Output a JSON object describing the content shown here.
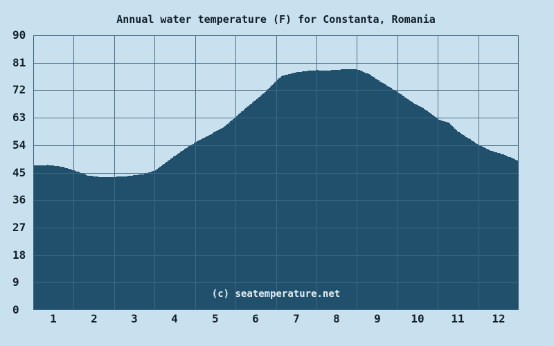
{
  "title": "Annual water temperature (F) for Constanta, Romania",
  "watermark": "(c) seatemperature.net",
  "colors": {
    "background": "#c9e1ee",
    "area_fill": "#20506b",
    "grid_on_background": "#4e7089",
    "grid_on_area": "#3a6885",
    "plot_border": "#3d617c",
    "text": "#111f29",
    "watermark_text": "#e4edf3"
  },
  "chart_data": {
    "type": "area",
    "title": "Annual water temperature (F) for Constanta, Romania",
    "xlabel": "",
    "ylabel": "",
    "xlim": [
      0,
      12
    ],
    "ylim": [
      0,
      90
    ],
    "grid": true,
    "legend": "none",
    "x_tick_labels": [
      "1",
      "2",
      "3",
      "4",
      "5",
      "6",
      "7",
      "8",
      "9",
      "10",
      "11",
      "12"
    ],
    "y_tick_labels": [
      "0",
      "9",
      "18",
      "27",
      "36",
      "45",
      "54",
      "63",
      "72",
      "81",
      "90"
    ],
    "y_tick_values": [
      0,
      9,
      18,
      27,
      36,
      45,
      54,
      63,
      72,
      81,
      90
    ],
    "categories": [
      "1",
      "2",
      "3",
      "4",
      "5",
      "6",
      "7",
      "8",
      "9",
      "10",
      "11",
      "12"
    ],
    "values": [
      47.3,
      43.7,
      44.1,
      50.3,
      59.1,
      69.0,
      78.6,
      78.9,
      75.4,
      66.6,
      58.3,
      51.3
    ],
    "series_name": "Water temperature (F)",
    "curve_points": [
      [
        0.0,
        47.3
      ],
      [
        0.35,
        47.5
      ],
      [
        0.7,
        46.9
      ],
      [
        1.0,
        45.7
      ],
      [
        1.35,
        44.0
      ],
      [
        1.7,
        43.5
      ],
      [
        2.0,
        43.6
      ],
      [
        2.35,
        43.9
      ],
      [
        2.7,
        44.5
      ],
      [
        3.0,
        45.7
      ],
      [
        3.35,
        49.2
      ],
      [
        3.7,
        52.5
      ],
      [
        4.0,
        55.0
      ],
      [
        4.35,
        57.4
      ],
      [
        4.7,
        60.0
      ],
      [
        5.0,
        63.4
      ],
      [
        5.25,
        66.3
      ],
      [
        5.5,
        69.0
      ],
      [
        5.75,
        71.8
      ],
      [
        6.0,
        75.2
      ],
      [
        6.15,
        76.8
      ],
      [
        6.5,
        77.9
      ],
      [
        6.75,
        78.3
      ],
      [
        7.0,
        78.6
      ],
      [
        7.2,
        78.4
      ],
      [
        7.5,
        78.7
      ],
      [
        7.8,
        79.0
      ],
      [
        8.0,
        78.8
      ],
      [
        8.3,
        77.2
      ],
      [
        8.5,
        75.4
      ],
      [
        9.0,
        71.3
      ],
      [
        9.35,
        68.1
      ],
      [
        9.7,
        65.5
      ],
      [
        10.0,
        62.4
      ],
      [
        10.25,
        61.4
      ],
      [
        10.5,
        58.3
      ],
      [
        10.75,
        56.2
      ],
      [
        11.0,
        54.0
      ],
      [
        11.3,
        52.2
      ],
      [
        11.6,
        51.0
      ],
      [
        11.8,
        49.9
      ],
      [
        12.0,
        48.6
      ]
    ]
  }
}
